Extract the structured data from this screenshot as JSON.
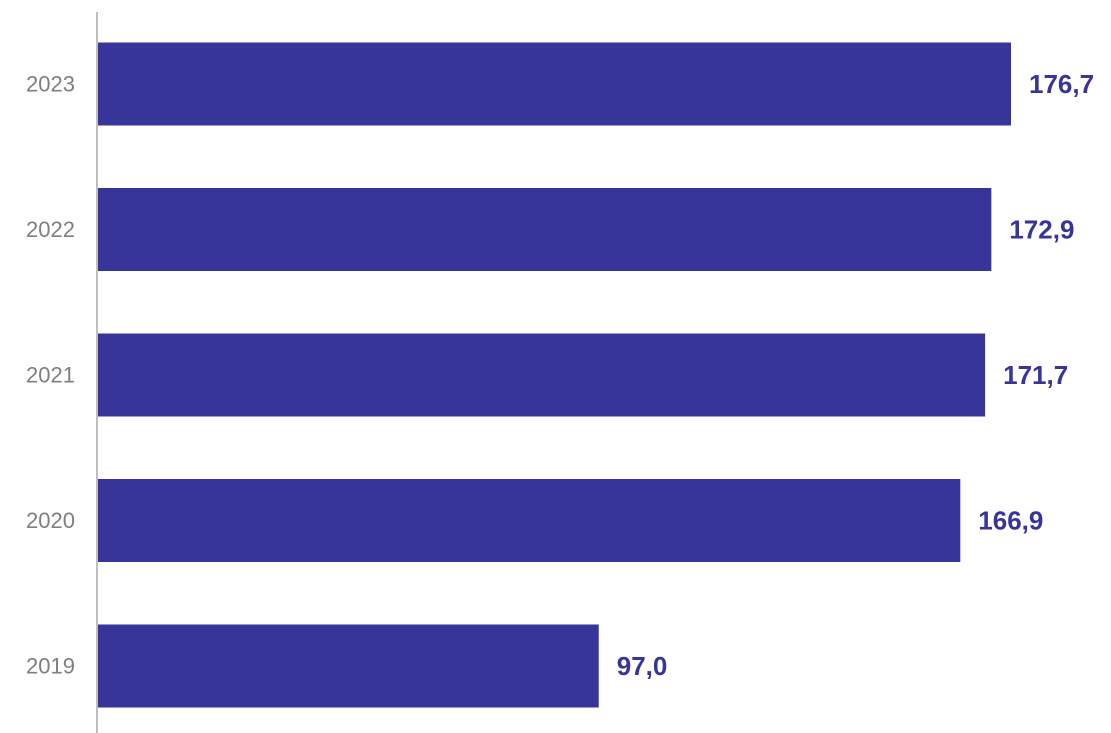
{
  "chart_data": {
    "type": "bar",
    "orientation": "horizontal",
    "categories": [
      "2023",
      "2022",
      "2021",
      "2020",
      "2019"
    ],
    "values": [
      176.7,
      172.9,
      171.7,
      166.9,
      97.0
    ],
    "value_labels": [
      "176,7",
      "172,9",
      "171,7",
      "166,9",
      "97,0"
    ],
    "title": "",
    "xlabel": "",
    "ylabel": "",
    "xlim": [
      0,
      180
    ],
    "grid": false,
    "legend": "none",
    "bar_color": "#37349a",
    "label_color": "#37349a",
    "category_label_color": "#7f7f7f",
    "axis_color": "#bfbfbf"
  }
}
